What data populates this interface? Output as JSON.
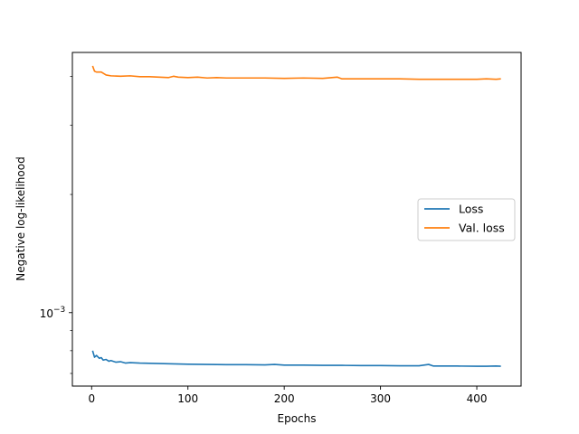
{
  "chart_data": {
    "type": "line",
    "title": "",
    "xlabel": "Epochs",
    "ylabel": "Negative log-likelihood",
    "xlim": [
      -20,
      446
    ],
    "ylim": [
      0.00065,
      0.0046
    ],
    "yscale": "log",
    "xticks": [
      0,
      100,
      200,
      300,
      400
    ],
    "xtick_labels": [
      "0",
      "100",
      "200",
      "300",
      "400"
    ],
    "yticks": [
      0.001
    ],
    "ytick_labels": [
      "10",
      "−3"
    ],
    "grid": false,
    "legend": {
      "placement": "center-right"
    },
    "series": [
      {
        "name": "Loss",
        "color": "#1f77b4",
        "x": [
          1,
          3,
          5,
          8,
          10,
          12,
          15,
          18,
          20,
          25,
          30,
          35,
          40,
          50,
          60,
          70,
          80,
          90,
          100,
          120,
          140,
          160,
          180,
          190,
          200,
          220,
          240,
          260,
          280,
          300,
          320,
          340,
          350,
          355,
          360,
          380,
          400,
          410,
          420,
          425
        ],
        "y": [
          0.0008,
          0.00077,
          0.000778,
          0.000765,
          0.000768,
          0.000757,
          0.00076,
          0.000752,
          0.000755,
          0.000748,
          0.00075,
          0.000744,
          0.000746,
          0.000744,
          0.000743,
          0.000742,
          0.000741,
          0.00074,
          0.000739,
          0.000738,
          0.000737,
          0.000737,
          0.000736,
          0.000738,
          0.000735,
          0.000735,
          0.000734,
          0.000734,
          0.000733,
          0.000733,
          0.000732,
          0.000732,
          0.000738,
          0.000731,
          0.000731,
          0.000731,
          0.00073,
          0.00073,
          0.000731,
          0.00073
        ]
      },
      {
        "name": "Val. loss",
        "color": "#ff7f0e",
        "x": [
          1,
          3,
          5,
          10,
          15,
          20,
          30,
          40,
          50,
          60,
          70,
          80,
          85,
          90,
          100,
          110,
          120,
          130,
          140,
          160,
          180,
          200,
          220,
          240,
          255,
          260,
          280,
          300,
          320,
          340,
          360,
          380,
          400,
          410,
          420,
          425
        ],
        "y": [
          0.00425,
          0.00412,
          0.0041,
          0.0041,
          0.00403,
          0.00401,
          0.004,
          0.00401,
          0.00399,
          0.00399,
          0.00398,
          0.00397,
          0.004,
          0.00398,
          0.00397,
          0.00398,
          0.00396,
          0.00397,
          0.00396,
          0.00396,
          0.00396,
          0.00395,
          0.00396,
          0.00395,
          0.00398,
          0.00394,
          0.00394,
          0.00394,
          0.00394,
          0.00393,
          0.00393,
          0.00393,
          0.00393,
          0.00394,
          0.00393,
          0.00394
        ]
      }
    ]
  }
}
